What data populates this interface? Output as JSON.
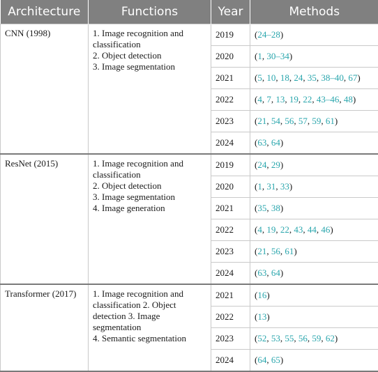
{
  "headers": [
    "Architecture",
    "Functions",
    "Year",
    "Methods"
  ],
  "groups": [
    {
      "architecture": "CNN (1998)",
      "functions": [
        "1. Image recognition and classification",
        "2. Object detection",
        "3. Image segmentation"
      ],
      "rows": [
        {
          "year": "2019",
          "refs": [
            "24–28"
          ]
        },
        {
          "year": "2020",
          "refs": [
            "1",
            "30–34"
          ]
        },
        {
          "year": "2021",
          "refs": [
            "5",
            "10",
            "18",
            "24",
            "35",
            "38–40",
            "67"
          ]
        },
        {
          "year": "2022",
          "refs": [
            "4",
            "7",
            "13",
            "19",
            "22",
            "43–46",
            "48"
          ]
        },
        {
          "year": "2023",
          "refs": [
            "21",
            "54",
            "56",
            "57",
            "59",
            "61"
          ]
        },
        {
          "year": "2024",
          "refs": [
            "63",
            "64"
          ]
        }
      ]
    },
    {
      "architecture": "ResNet (2015)",
      "functions": [
        "1. Image recognition and classification",
        "2. Object detection",
        "3. Image segmentation",
        "4. Image generation"
      ],
      "rows": [
        {
          "year": "2019",
          "refs": [
            "24",
            "29"
          ]
        },
        {
          "year": "2020",
          "refs": [
            "1",
            "31",
            "33"
          ]
        },
        {
          "year": "2021",
          "refs": [
            "35",
            "38"
          ]
        },
        {
          "year": "2022",
          "refs": [
            "4",
            "19",
            "22",
            "43",
            "44",
            "46"
          ]
        },
        {
          "year": "2023",
          "refs": [
            "21",
            "56",
            "61"
          ]
        },
        {
          "year": "2024",
          "refs": [
            "63",
            "64"
          ]
        }
      ]
    },
    {
      "architecture": "Transformer (2017)",
      "functions": [
        "1. Image recognition and classification 2. Object detection 3. Image segmentation",
        "4. Semantic segmentation"
      ],
      "rows": [
        {
          "year": "2021",
          "refs": [
            "16"
          ]
        },
        {
          "year": "2022",
          "refs": [
            "13"
          ]
        },
        {
          "year": "2023",
          "refs": [
            "52",
            "53",
            "55",
            "56",
            "59",
            "62"
          ]
        },
        {
          "year": "2024",
          "refs": [
            "64",
            "65"
          ]
        }
      ]
    }
  ]
}
